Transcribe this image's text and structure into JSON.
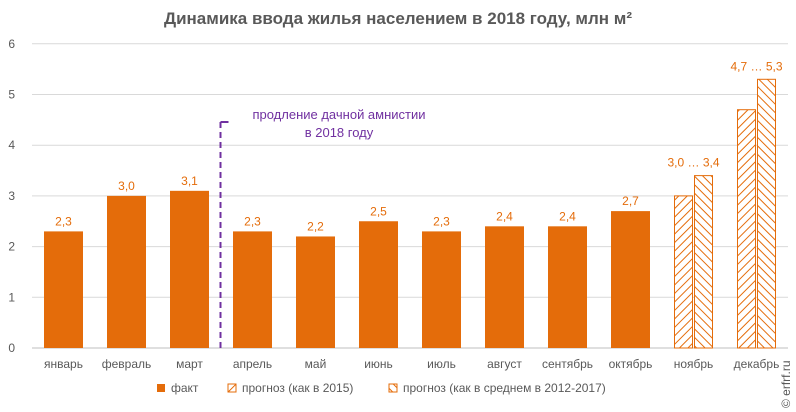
{
  "chart_data": {
    "type": "bar",
    "title": "Динамика ввода жилья населением в 2018 году, млн м²",
    "categories": [
      "январь",
      "февраль",
      "март",
      "апрель",
      "май",
      "июнь",
      "июль",
      "август",
      "сентябрь",
      "октябрь",
      "ноябрь",
      "декабрь"
    ],
    "ylim": [
      0,
      6
    ],
    "yticks": [
      "0",
      "1",
      "2",
      "3",
      "4",
      "5",
      "6"
    ],
    "grid": true,
    "series": [
      {
        "name": "факт",
        "values": [
          2.3,
          3.0,
          3.1,
          2.3,
          2.2,
          2.5,
          2.3,
          2.4,
          2.4,
          2.7,
          null,
          null
        ],
        "labels": [
          "2,3",
          "3,0",
          "3,1",
          "2,3",
          "2,2",
          "2,5",
          "2,3",
          "2,4",
          "2,4",
          "2,7",
          "",
          ""
        ]
      },
      {
        "name": "прогноз (как в 2015)",
        "values": [
          null,
          null,
          null,
          null,
          null,
          null,
          null,
          null,
          null,
          null,
          3.0,
          4.7
        ]
      },
      {
        "name": "прогноз (как в среднем в 2012-2017)",
        "values": [
          null,
          null,
          null,
          null,
          null,
          null,
          null,
          null,
          null,
          null,
          3.4,
          5.3
        ]
      }
    ],
    "range_labels": [
      {
        "category": "ноябрь",
        "text": "3,0 … 3,4"
      },
      {
        "category": "декабрь",
        "text": "4,7 … 5,3"
      }
    ],
    "annotation": {
      "text_line1": "продление дачной амнистии",
      "text_line2": "в 2018 году",
      "between": [
        "март",
        "апрель"
      ]
    },
    "legend_position": "bottom",
    "colors": {
      "fact": "#E46C0A",
      "forecast": "#E46C0A",
      "grid": "#D9D9D9",
      "annotation": "#7030A0"
    }
  },
  "watermark": "© erfrf.ru"
}
